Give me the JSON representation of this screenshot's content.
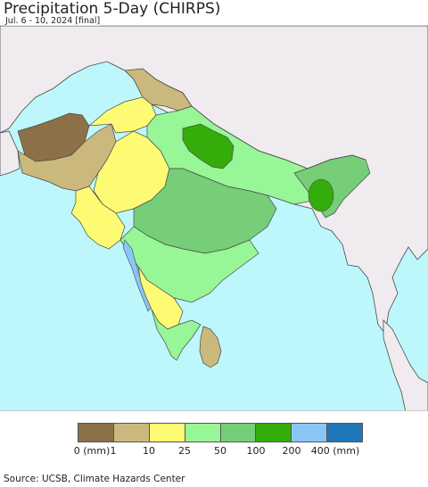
{
  "title": "Precipitation 5-Day (CHIRPS)",
  "date_range": "Jul. 6 - 10, 2024 [final]",
  "map": {
    "ocean_color": "#bdf7fb",
    "land_outside_color": "#efebef",
    "border_color": "#4a4a4a",
    "regions": [
      {
        "name": "pakistan-west",
        "category": "0-1",
        "color": "#8c7048"
      },
      {
        "name": "pakistan-south",
        "category": "1-10",
        "color": "#cbb87c"
      },
      {
        "name": "rajasthan",
        "category": "10-25",
        "color": "#fdfb73"
      },
      {
        "name": "gangetic-plain",
        "category": "25-50",
        "color": "#97f696"
      },
      {
        "name": "uttarakhand",
        "category": "100-200",
        "color": "#34ac0a"
      },
      {
        "name": "central-india",
        "category": "50-100",
        "color": "#76ce78"
      },
      {
        "name": "deccan",
        "category": "25-50",
        "color": "#97f696"
      },
      {
        "name": "karnataka-interior",
        "category": "10-25",
        "color": "#fdfb73"
      },
      {
        "name": "western-coast",
        "category": "200-400",
        "color": "#8ac6f5"
      }
    ]
  },
  "legend": {
    "colors": [
      "#8c7048",
      "#cbb87c",
      "#fdfb73",
      "#97f696",
      "#76ce78",
      "#34ac0a",
      "#8ac6f5",
      "#1e77b8"
    ],
    "labels": [
      "0 (mm)",
      "1",
      "10",
      "25",
      "50",
      "100",
      "200",
      "400 (mm)"
    ]
  },
  "source": "Source: UCSB, Climate Hazards Center"
}
